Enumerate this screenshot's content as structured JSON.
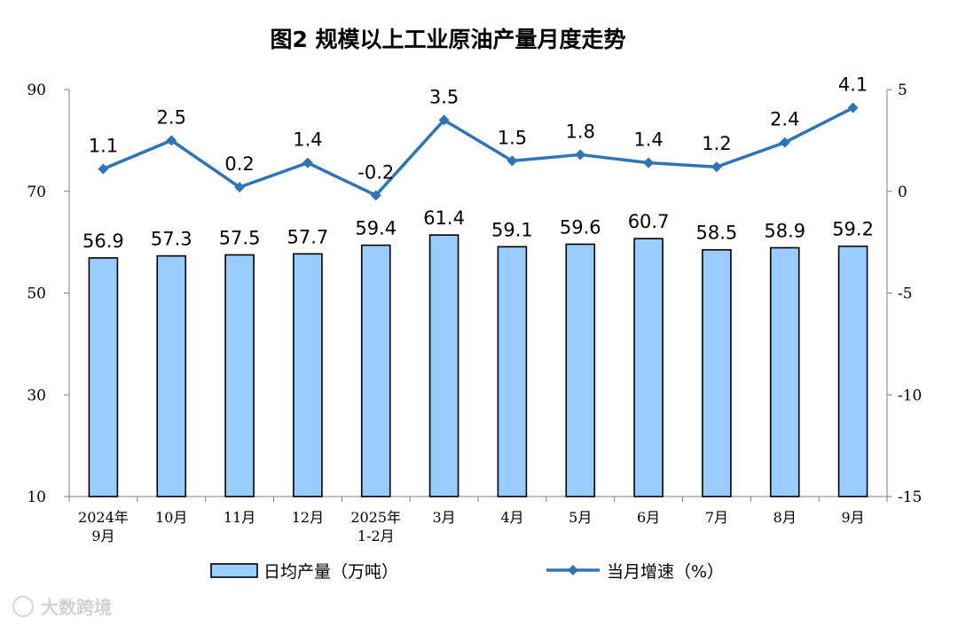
{
  "watermark": "大数跨境",
  "colors": {
    "bar_fill": "#99CCFF",
    "bar_stroke": "#000000",
    "line": "#2E75B6",
    "axis": "#808080"
  },
  "chart_data": {
    "type": "bar",
    "title": "图2  规模以上工业原油产量月度走势",
    "categories": [
      [
        "2024年",
        "9月"
      ],
      [
        "10月"
      ],
      [
        "11月"
      ],
      [
        "12月"
      ],
      [
        "2025年",
        "1-2月"
      ],
      [
        "3月"
      ],
      [
        "4月"
      ],
      [
        "5月"
      ],
      [
        "6月"
      ],
      [
        "7月"
      ],
      [
        "8月"
      ],
      [
        "9月"
      ]
    ],
    "series": [
      {
        "name": "日均产量（万吨）",
        "type": "bar",
        "axis": "left",
        "values": [
          56.9,
          57.3,
          57.5,
          57.7,
          59.4,
          61.4,
          59.1,
          59.6,
          60.7,
          58.5,
          58.9,
          59.2
        ],
        "labels": [
          "56.9",
          "57.3",
          "57.5",
          "57.7",
          "59.4",
          "61.4",
          "59.1",
          "59.6",
          "60.7",
          "58.5",
          "58.9",
          "59.2"
        ]
      },
      {
        "name": "当月增速（%）",
        "type": "line",
        "axis": "right",
        "values": [
          1.1,
          2.5,
          0.2,
          1.4,
          -0.2,
          3.5,
          1.5,
          1.8,
          1.4,
          1.2,
          2.4,
          4.1
        ],
        "labels": [
          "1.1",
          "2.5",
          "0.2",
          "1.4",
          "-0.2",
          "3.5",
          "1.5",
          "1.8",
          "1.4",
          "1.2",
          "2.4",
          "4.1"
        ]
      }
    ],
    "y_left": {
      "ylim": [
        10,
        90
      ],
      "ticks": [
        "90",
        "70",
        "50",
        "30",
        "10"
      ],
      "tick_values": [
        90,
        70,
        50,
        30,
        10
      ]
    },
    "y_right": {
      "ylim": [
        -15,
        5
      ],
      "ticks": [
        "5",
        "0",
        "-5",
        "-10",
        "-15"
      ],
      "tick_values": [
        5,
        0,
        -5,
        -10,
        -15
      ]
    },
    "grid": false,
    "legend_position": "bottom"
  }
}
